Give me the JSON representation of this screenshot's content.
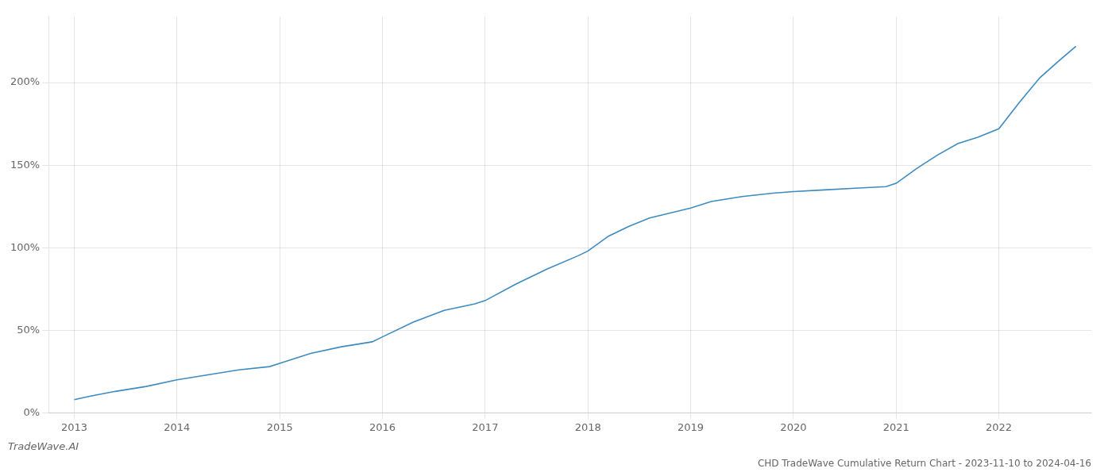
{
  "chart_data": {
    "type": "line",
    "title": "CHD TradeWave Cumulative Return Chart - 2023-11-10 to 2024-04-16",
    "annotations": [
      "TradeWave.AI"
    ],
    "color": "#3d8bbf",
    "x": [
      2013.0,
      2013.15,
      2013.4,
      2013.7,
      2014.0,
      2014.3,
      2014.6,
      2014.9,
      2015.0,
      2015.3,
      2015.6,
      2015.9,
      2016.0,
      2016.3,
      2016.6,
      2016.9,
      2017.0,
      2017.3,
      2017.6,
      2017.9,
      2018.0,
      2018.2,
      2018.4,
      2018.6,
      2018.8,
      2019.0,
      2019.2,
      2019.5,
      2019.8,
      2020.0,
      2020.3,
      2020.6,
      2020.9,
      2021.0,
      2021.2,
      2021.4,
      2021.6,
      2021.8,
      2022.0,
      2022.2,
      2022.4,
      2022.6,
      2022.75
    ],
    "values": [
      8,
      10,
      13,
      16,
      20,
      23,
      26,
      28,
      30,
      36,
      40,
      43,
      46,
      55,
      62,
      66,
      68,
      78,
      87,
      95,
      98,
      107,
      113,
      118,
      121,
      124,
      128,
      131,
      133,
      134,
      135,
      136,
      137,
      139,
      148,
      156,
      163,
      167,
      172,
      188,
      203,
      214,
      222
    ],
    "xlim": [
      2012.75,
      2022.9
    ],
    "xticks": [
      2013,
      2014,
      2015,
      2016,
      2017,
      2018,
      2019,
      2020,
      2021,
      2022
    ],
    "ylim": [
      0,
      240
    ],
    "yticks": [
      {
        "value": 0,
        "label": "0%"
      },
      {
        "value": 50,
        "label": "50%"
      },
      {
        "value": 100,
        "label": "100%"
      },
      {
        "value": 150,
        "label": "150%"
      },
      {
        "value": 200,
        "label": "200%"
      }
    ],
    "grid": true
  }
}
